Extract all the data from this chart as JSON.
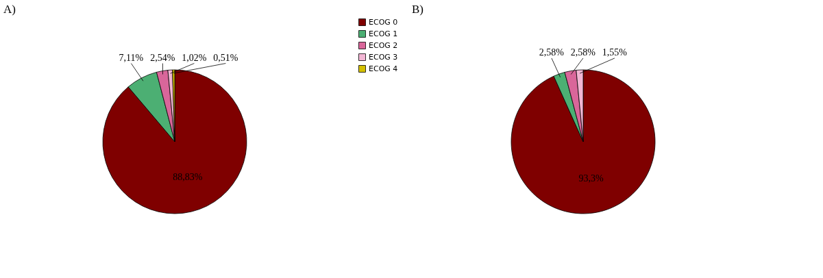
{
  "chart_data": [
    {
      "type": "pie",
      "title": "A)",
      "categories": [
        "ECOG 0",
        "ECOG 1",
        "ECOG 2",
        "ECOG 3",
        "ECOG 4"
      ],
      "values": [
        88.83,
        7.11,
        2.54,
        1.02,
        0.51
      ],
      "colors": [
        "#7f0000",
        "#4caf73",
        "#d9669a",
        "#f2b6d4",
        "#d4c000"
      ],
      "value_labels": [
        "88,83%",
        "7,11%",
        "2,54%",
        "1,02%",
        "0,51%"
      ],
      "legend": "top right"
    },
    {
      "type": "pie",
      "title": "B)",
      "categories": [
        null,
        null,
        null,
        null
      ],
      "values": [
        93.3,
        2.58,
        2.58,
        1.55
      ],
      "colors": [
        "#7f0000",
        "#4caf73",
        "#d9669a",
        "#f2b6d4"
      ],
      "value_labels": [
        "93,3%",
        "2,58%",
        "2,58%",
        "1,55%"
      ]
    }
  ]
}
